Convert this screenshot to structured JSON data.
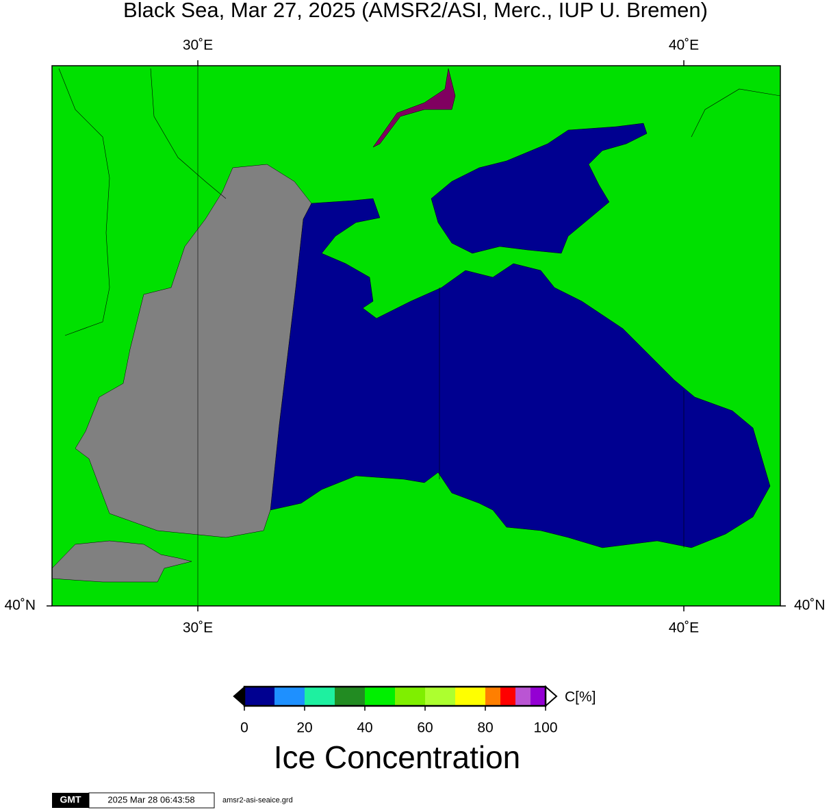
{
  "title": "Black Sea, Mar 27, 2025 (AMSR2/ASI, Merc., IUP U. Bremen)",
  "map": {
    "lon_ticks": [
      {
        "value": 30,
        "label": "30˚E"
      },
      {
        "value": 40,
        "label": "40˚E"
      }
    ],
    "lat_ticks": [
      {
        "value": 40,
        "label": "40˚N"
      }
    ]
  },
  "colorbar": {
    "label": "C[%]",
    "title": "Ice Concentration",
    "range": [
      0,
      100
    ],
    "ticks": [
      0,
      20,
      40,
      60,
      80,
      100
    ],
    "bounds": [
      0,
      10,
      20,
      30,
      40,
      50,
      60,
      70,
      80,
      85,
      90,
      95,
      100
    ],
    "colors": [
      "#000090",
      "#1e90ff",
      "#1ef0a0",
      "#228b22",
      "#00f000",
      "#7fef00",
      "#adff2f",
      "#ffff00",
      "#ff7f00",
      "#ff0000",
      "#ba55d3",
      "#9400d3"
    ]
  },
  "footer": {
    "logo": "GMT",
    "timestamp": "2025 Mar 28 06:43:58",
    "filename": "amsr2-asi-seaice.grd"
  }
}
